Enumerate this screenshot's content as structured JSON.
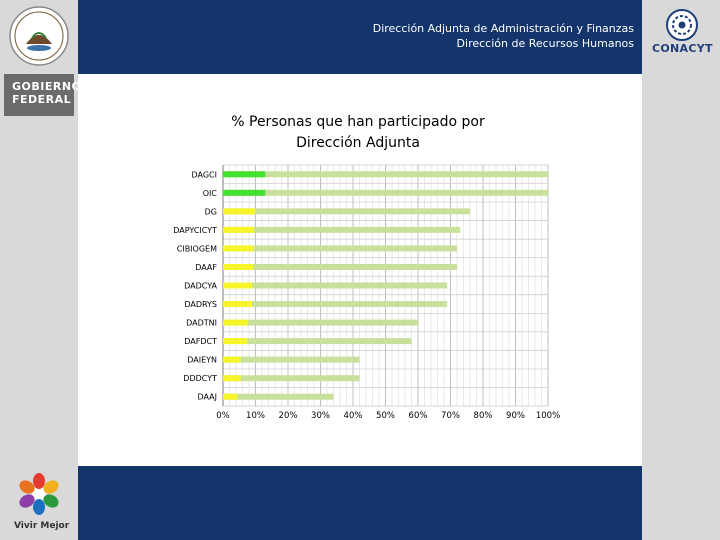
{
  "header": {
    "line1": "Dirección Adjunta de Administración y Finanzas",
    "line2": "Dirección de Recursos Humanos"
  },
  "logos": {
    "seal_icon": "coat-of-arms-seal",
    "gobierno_line1": "GOBIERNO",
    "gobierno_line2": "FEDERAL",
    "conacyt": "CONACYT",
    "vivir_mejor": "Vivir Mejor"
  },
  "colors": {
    "band": "#14356b",
    "sidebar": "#d9d9d9",
    "bar_green": "#44e02f",
    "bar_yellow": "#f5f52a",
    "bar_tail": "#c9df9c"
  },
  "chart_data": {
    "type": "bar",
    "orientation": "horizontal",
    "title_line1": "% Personas que han participado por",
    "title_line2": "Dirección Adjunta",
    "categories": [
      "DAGCI",
      "OIC",
      "DG",
      "DAPYCICYT",
      "CIBIOGEM",
      "DAAF",
      "DADCYA",
      "DADRYS",
      "DADTNI",
      "DAFDCT",
      "DAIEYN",
      "DDDCYT",
      "DAAJ"
    ],
    "values": [
      100,
      100,
      76,
      73,
      72,
      72,
      69,
      69,
      60,
      58,
      42,
      42,
      34
    ],
    "xlim": [
      0,
      100
    ],
    "ticks": [
      0,
      10,
      20,
      30,
      40,
      50,
      60,
      70,
      80,
      90,
      100
    ],
    "tick_labels": [
      "0%",
      "10%",
      "20%",
      "30%",
      "40%",
      "50%",
      "60%",
      "70%",
      "80%",
      "90%",
      "100%"
    ],
    "grid": true
  }
}
